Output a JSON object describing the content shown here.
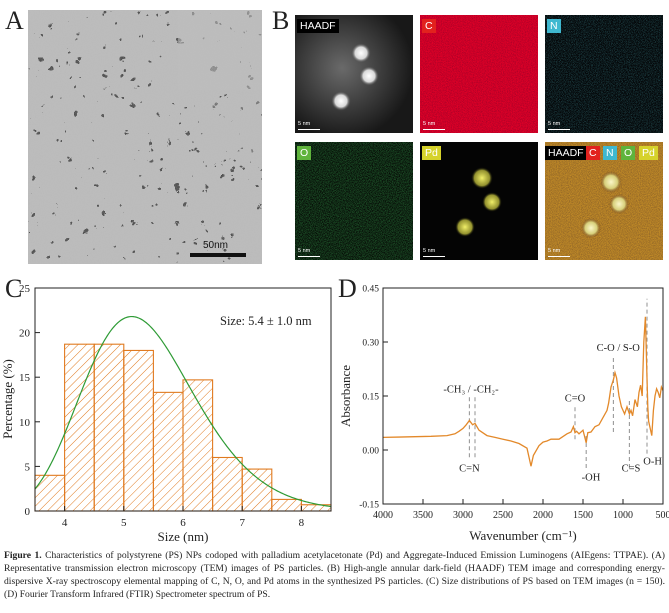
{
  "panels": {
    "a": "A",
    "b": "B",
    "c": "C",
    "d": "D"
  },
  "tem": {
    "scale_label": "50nm"
  },
  "eds_maps": [
    {
      "id": "haadf",
      "label": "HAADF",
      "scale": "5 nm",
      "label_color": "#000000"
    },
    {
      "id": "c",
      "label": "C",
      "scale": "5 nm",
      "label_color": "#e2221e"
    },
    {
      "id": "n",
      "label": "N",
      "scale": "5 nm",
      "label_color": "#3fb8d0"
    },
    {
      "id": "o",
      "label": "O",
      "scale": "5 nm",
      "label_color": "#5fb43c"
    },
    {
      "id": "pd",
      "label": "Pd",
      "scale": "5 nm",
      "label_color": "#d6d22b"
    },
    {
      "id": "overlay",
      "label": "HAADF",
      "scale": "5 nm",
      "label_color": "#000000",
      "tags": [
        {
          "text": "C",
          "color": "#e2221e"
        },
        {
          "text": "N",
          "color": "#3fb8d0"
        },
        {
          "text": "O",
          "color": "#5fb43c"
        },
        {
          "text": "Pd",
          "color": "#d6d22b"
        }
      ]
    }
  ],
  "chart_data": [
    {
      "type": "bar",
      "xlabel": "Size (nm)",
      "ylabel": "Percentage (%)",
      "xlim": [
        3.5,
        8.5
      ],
      "ylim": [
        0,
        25
      ],
      "x_ticks": [
        4,
        5,
        6,
        7,
        8
      ],
      "y_ticks": [
        0,
        5,
        10,
        15,
        20,
        25
      ],
      "bin_edges": [
        3.5,
        4.0,
        4.5,
        5.0,
        5.5,
        6.0,
        6.5,
        7.0,
        7.5,
        8.0,
        8.5
      ],
      "values": [
        4.0,
        18.7,
        18.7,
        18.0,
        13.3,
        14.7,
        6.0,
        4.7,
        1.3,
        0.7
      ],
      "fit": {
        "type": "lognormal",
        "mean": 5.4,
        "sd": 1.0,
        "peak": 21.8
      },
      "annotation": "Size: 5.4 ± 1.0 nm",
      "colors": {
        "bar_edge": "#e07a1f",
        "hatch": "#e07a1f",
        "fit": "#2e9b35"
      }
    },
    {
      "type": "line",
      "xlabel": "Wavenumber (cm⁻¹)",
      "ylabel": "Absorbance",
      "xlim": [
        4000,
        500
      ],
      "ylim": [
        -0.15,
        0.45
      ],
      "x_ticks": [
        4000,
        3500,
        3000,
        2500,
        2000,
        1500,
        1000,
        500
      ],
      "y_ticks": [
        -0.15,
        0.0,
        0.15,
        0.3,
        0.45
      ],
      "y_tick_labels": [
        "-0.15",
        "0.00",
        "0.15",
        "0.30",
        "0.45"
      ],
      "series": [
        {
          "name": "FTIR",
          "color": "#e3892a",
          "x": [
            4000,
            3800,
            3600,
            3400,
            3200,
            3100,
            3050,
            3000,
            2960,
            2920,
            2880,
            2850,
            2800,
            2700,
            2600,
            2500,
            2400,
            2300,
            2200,
            2150,
            2120,
            2050,
            2000,
            1950,
            1900,
            1800,
            1700,
            1650,
            1620,
            1600,
            1580,
            1550,
            1500,
            1460,
            1440,
            1400,
            1350,
            1300,
            1250,
            1200,
            1180,
            1150,
            1120,
            1100,
            1080,
            1050,
            1020,
            1000,
            980,
            950,
            920,
            900,
            880,
            850,
            820,
            800,
            780,
            760,
            740,
            720,
            700,
            690,
            680,
            660,
            640,
            620,
            600,
            580,
            560,
            540,
            520,
            500
          ],
          "y": [
            0.035,
            0.036,
            0.037,
            0.038,
            0.04,
            0.045,
            0.052,
            0.06,
            0.07,
            0.082,
            0.07,
            0.074,
            0.055,
            0.04,
            0.035,
            0.03,
            0.025,
            0.018,
            0.005,
            -0.045,
            -0.015,
            0.012,
            0.022,
            0.025,
            0.03,
            0.03,
            0.045,
            0.05,
            0.065,
            0.048,
            0.052,
            0.045,
            0.055,
            0.02,
            0.048,
            0.05,
            0.065,
            0.07,
            0.09,
            0.11,
            0.13,
            0.175,
            0.195,
            0.215,
            0.2,
            0.15,
            0.12,
            0.11,
            0.1,
            0.12,
            0.1,
            0.11,
            0.095,
            0.14,
            0.12,
            0.16,
            0.18,
            0.15,
            0.3,
            0.37,
            0.2,
            0.12,
            0.08,
            0.06,
            0.04,
            0.11,
            0.15,
            0.17,
            0.16,
            0.145,
            0.175,
            0.165
          ]
        }
      ],
      "annotations": [
        {
          "text": "-CH₃ / -CH₂-",
          "x": 2900,
          "y": 0.16
        },
        {
          "text": "C=O",
          "x": 1600,
          "y": 0.135
        },
        {
          "text": "C-O / S-O",
          "x": 1060,
          "y": 0.275
        },
        {
          "text": "C=N",
          "x": 2920,
          "y": -0.06
        },
        {
          "text": "-OH",
          "x": 1400,
          "y": -0.085
        },
        {
          "text": "C=S",
          "x": 900,
          "y": -0.06
        },
        {
          "text": "O-H",
          "x": 630,
          "y": -0.04
        }
      ],
      "marker_lines": [
        {
          "x": 2920,
          "y0": -0.02,
          "y1": 0.15
        },
        {
          "x": 2850,
          "y0": -0.02,
          "y1": 0.15
        },
        {
          "x": 1600,
          "y0": 0.03,
          "y1": 0.12
        },
        {
          "x": 1460,
          "y0": -0.05,
          "y1": 0.04
        },
        {
          "x": 1120,
          "y0": 0.05,
          "y1": 0.26
        },
        {
          "x": 920,
          "y0": -0.05,
          "y1": 0.14
        },
        {
          "x": 700,
          "y0": -0.01,
          "y1": 0.42
        }
      ]
    }
  ],
  "caption": {
    "label": "Figure 1.",
    "text": " Characteristics of polystyrene (PS) NPs codoped with palladium acetylacetonate (Pd) and Aggregate-Induced Emission Luminogens (AIEgens: TTPAE). (A) Representative transmission electron microscopy (TEM) images of PS particles. (B) High-angle annular dark-field (HAADF) TEM image and corresponding energy-dispersive X-ray spectroscopy elemental mapping of C, N, O, and Pd atoms in the synthesized PS particles. (C) Size distributions of PS based on TEM images (n = 150). (D) Fourier Transform Infrared (FTIR) Spectrometer spectrum of PS."
  }
}
